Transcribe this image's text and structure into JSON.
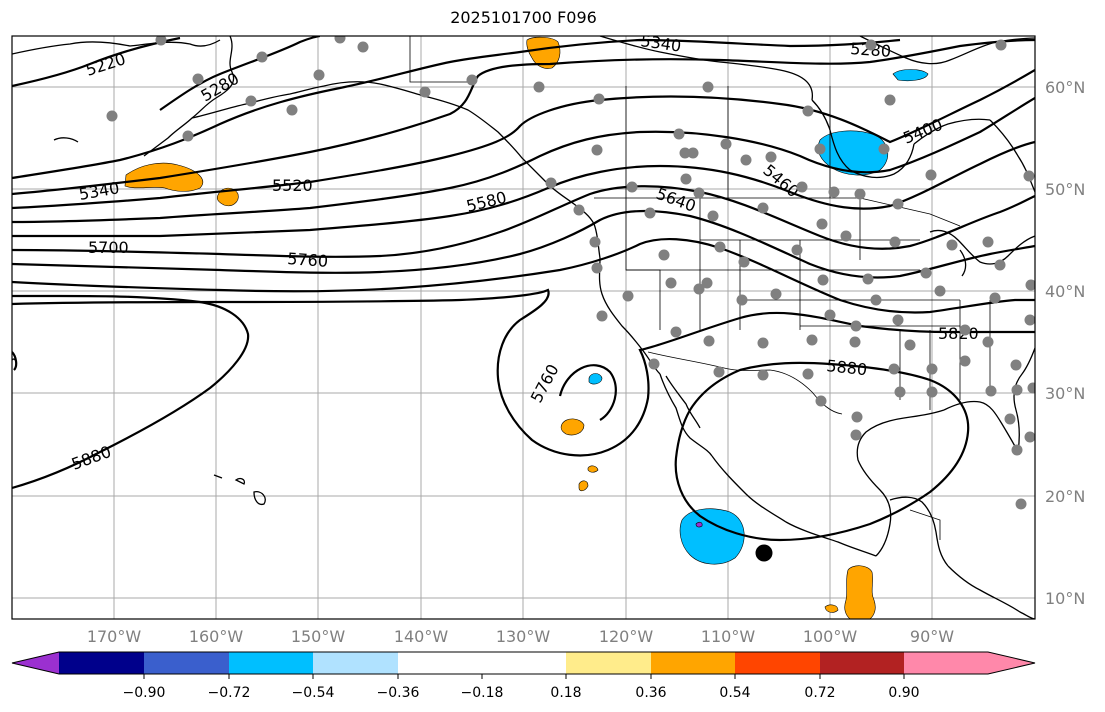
{
  "title": "2025101700 F096",
  "lat_labels": [
    "60°N",
    "50°N",
    "40°N",
    "30°N",
    "20°N",
    "10°N"
  ],
  "lon_labels": [
    "170°W",
    "160°W",
    "150°W",
    "140°W",
    "130°W",
    "120°W",
    "110°W",
    "100°W",
    "90°W"
  ],
  "contour_labels": [
    "5220",
    "5280",
    "5340",
    "5520",
    "5700",
    "5760",
    "5880",
    "5340",
    "5580",
    "5640",
    "5460",
    "5400",
    "5280",
    "5820",
    "5880",
    "5760"
  ],
  "colorbar": {
    "ticks": [
      "−0.90",
      "−0.72",
      "−0.54",
      "−0.36",
      "−0.18",
      "0.18",
      "0.36",
      "0.54",
      "0.72",
      "0.90"
    ],
    "colors": [
      "#9b30d0",
      "#00008b",
      "#3a5fcd",
      "#00bfff",
      "#b0e2ff",
      "#ffffff",
      "#ffec8b",
      "#ffa500",
      "#ff4500",
      "#b22222",
      "#ff88aa"
    ]
  }
}
